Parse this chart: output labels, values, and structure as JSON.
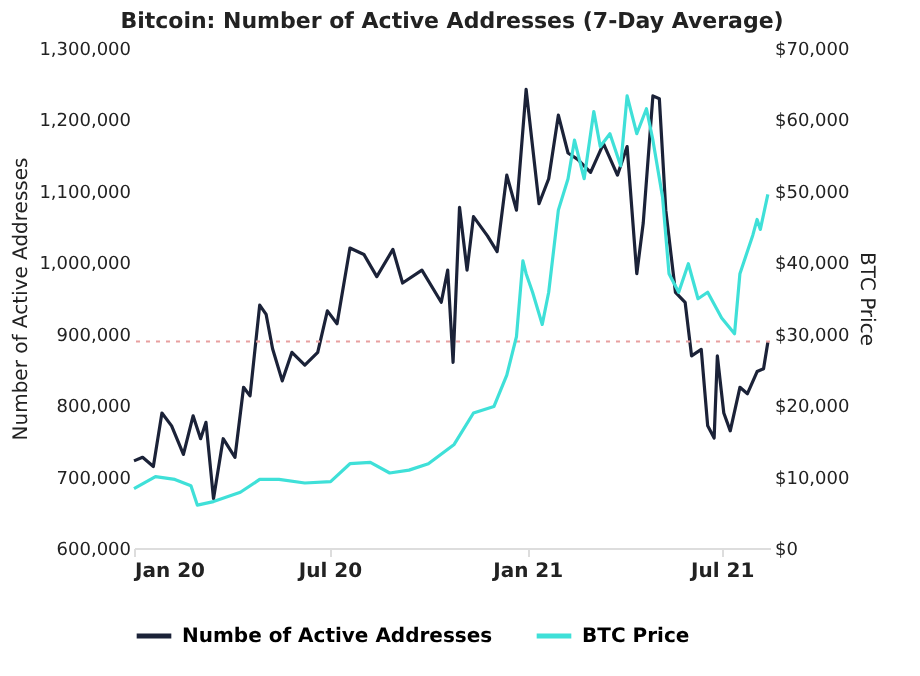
{
  "chart_data": {
    "type": "line",
    "title": "Bitcoin: Number of Active Addresses (7-Day Average)",
    "ylabel": "Number of Active Addresses",
    "y2label": "BTC Price",
    "xlim": [
      "2020-01-01",
      "2021-08-15"
    ],
    "xticks": [
      {
        "value": "2020-01-01",
        "label": "Jan 20"
      },
      {
        "value": "2020-07-01",
        "label": "Jul 20"
      },
      {
        "value": "2021-01-01",
        "label": "Jan 21"
      },
      {
        "value": "2021-07-01",
        "label": "Jul 21"
      }
    ],
    "ylim": [
      600000,
      1300000
    ],
    "yticks": [
      {
        "value": 600000,
        "label": "600,000"
      },
      {
        "value": 700000,
        "label": "700,000"
      },
      {
        "value": 800000,
        "label": "800,000"
      },
      {
        "value": 900000,
        "label": "900,000"
      },
      {
        "value": 1000000,
        "label": "1,000,000"
      },
      {
        "value": 1100000,
        "label": "1,100,000"
      },
      {
        "value": 1200000,
        "label": "1,200,000"
      },
      {
        "value": 1300000,
        "label": "1,300,000"
      }
    ],
    "y2lim": [
      0,
      70000
    ],
    "y2ticks": [
      {
        "value": 0,
        "label": "$0"
      },
      {
        "value": 10000,
        "label": "$10,000"
      },
      {
        "value": 20000,
        "label": "$20,000"
      },
      {
        "value": 30000,
        "label": "$30,000"
      },
      {
        "value": 40000,
        "label": "$40,000"
      },
      {
        "value": 50000,
        "label": "$50,000"
      },
      {
        "value": 60000,
        "label": "$60,000"
      },
      {
        "value": 70000,
        "label": "$70,000"
      }
    ],
    "grid": false,
    "legend": "bottom",
    "marker": "none",
    "line_style": "solid",
    "ref_lines": [
      {
        "axis": "y",
        "value": 889000,
        "color": "#e8a0a0",
        "line_style": "dotted"
      }
    ],
    "series": [
      {
        "name": "Numbe of Active Addresses",
        "color": "#1b2238",
        "axis": "y",
        "x": [
          "2020-01-01",
          "2020-01-09",
          "2020-01-19",
          "2020-01-27",
          "2020-02-05",
          "2020-02-16",
          "2020-02-25",
          "2020-03-03",
          "2020-03-08",
          "2020-03-15",
          "2020-03-24",
          "2020-04-04",
          "2020-04-12",
          "2020-04-18",
          "2020-04-27",
          "2020-05-03",
          "2020-05-09",
          "2020-05-18",
          "2020-05-27",
          "2020-06-08",
          "2020-06-20",
          "2020-06-29",
          "2020-07-08",
          "2020-07-20",
          "2020-08-02",
          "2020-08-14",
          "2020-08-29",
          "2020-09-07",
          "2020-09-25",
          "2020-10-13",
          "2020-10-19",
          "2020-10-24",
          "2020-10-30",
          "2020-11-06",
          "2020-11-12",
          "2020-11-25",
          "2020-12-04",
          "2020-12-13",
          "2020-12-22",
          "2020-12-31",
          "2021-01-12",
          "2021-01-21",
          "2021-01-30",
          "2021-02-08",
          "2021-02-17",
          "2021-03-01",
          "2021-03-13",
          "2021-03-26",
          "2021-04-04",
          "2021-04-13",
          "2021-04-19",
          "2021-04-28",
          "2021-05-04",
          "2021-05-10",
          "2021-05-19",
          "2021-05-28",
          "2021-06-03",
          "2021-06-12",
          "2021-06-18",
          "2021-06-24",
          "2021-06-27",
          "2021-07-03",
          "2021-07-09",
          "2021-07-18",
          "2021-07-25",
          "2021-08-03",
          "2021-08-09",
          "2021-08-13"
        ],
        "values": [
          722000,
          727000,
          714000,
          789000,
          771000,
          731000,
          785000,
          753000,
          776000,
          669000,
          753000,
          727000,
          825000,
          813000,
          940000,
          927000,
          879000,
          834000,
          874000,
          856000,
          874000,
          932000,
          914000,
          1020000,
          1011000,
          980000,
          1018000,
          971000,
          989000,
          944000,
          989000,
          860000,
          1077000,
          989000,
          1064000,
          1037000,
          1015000,
          1122000,
          1073000,
          1242000,
          1082000,
          1117000,
          1206000,
          1153000,
          1144000,
          1126000,
          1166000,
          1122000,
          1162000,
          984000,
          1055000,
          1233000,
          1229000,
          1073000,
          958000,
          944000,
          869000,
          878000,
          771000,
          754000,
          869000,
          789000,
          764000,
          825000,
          816000,
          847000,
          851000,
          888000
        ]
      },
      {
        "name": "BTC Price",
        "color": "#3fe0d8",
        "axis": "y2",
        "x": [
          "2020-01-01",
          "2020-01-21",
          "2020-02-08",
          "2020-02-23",
          "2020-02-29",
          "2020-03-15",
          "2020-04-09",
          "2020-04-27",
          "2020-05-15",
          "2020-06-08",
          "2020-07-02",
          "2020-07-20",
          "2020-08-08",
          "2020-08-26",
          "2020-09-13",
          "2020-10-01",
          "2020-10-25",
          "2020-11-12",
          "2020-12-01",
          "2020-12-13",
          "2020-12-22",
          "2020-12-28",
          "2020-12-31",
          "2021-01-06",
          "2021-01-15",
          "2021-01-21",
          "2021-01-30",
          "2021-02-08",
          "2021-02-14",
          "2021-02-23",
          "2021-03-04",
          "2021-03-10",
          "2021-03-19",
          "2021-03-29",
          "2021-04-04",
          "2021-04-13",
          "2021-04-22",
          "2021-04-28",
          "2021-05-07",
          "2021-05-13",
          "2021-05-22",
          "2021-05-31",
          "2021-06-09",
          "2021-06-18",
          "2021-07-01",
          "2021-07-13",
          "2021-07-18",
          "2021-07-30",
          "2021-08-03",
          "2021-08-06",
          "2021-08-13"
        ],
        "values": [
          8300,
          10000,
          9600,
          8700,
          6000,
          6500,
          7800,
          9600,
          9600,
          9100,
          9300,
          11800,
          12000,
          10500,
          10900,
          11800,
          14500,
          18900,
          19800,
          24200,
          29600,
          40200,
          38400,
          35800,
          31300,
          35800,
          47300,
          51700,
          57100,
          51700,
          61100,
          56200,
          58000,
          53500,
          63300,
          58000,
          61500,
          57100,
          49100,
          38400,
          35800,
          39800,
          34900,
          35800,
          32200,
          30000,
          38400,
          43800,
          46000,
          44600,
          49500
        ]
      }
    ]
  }
}
